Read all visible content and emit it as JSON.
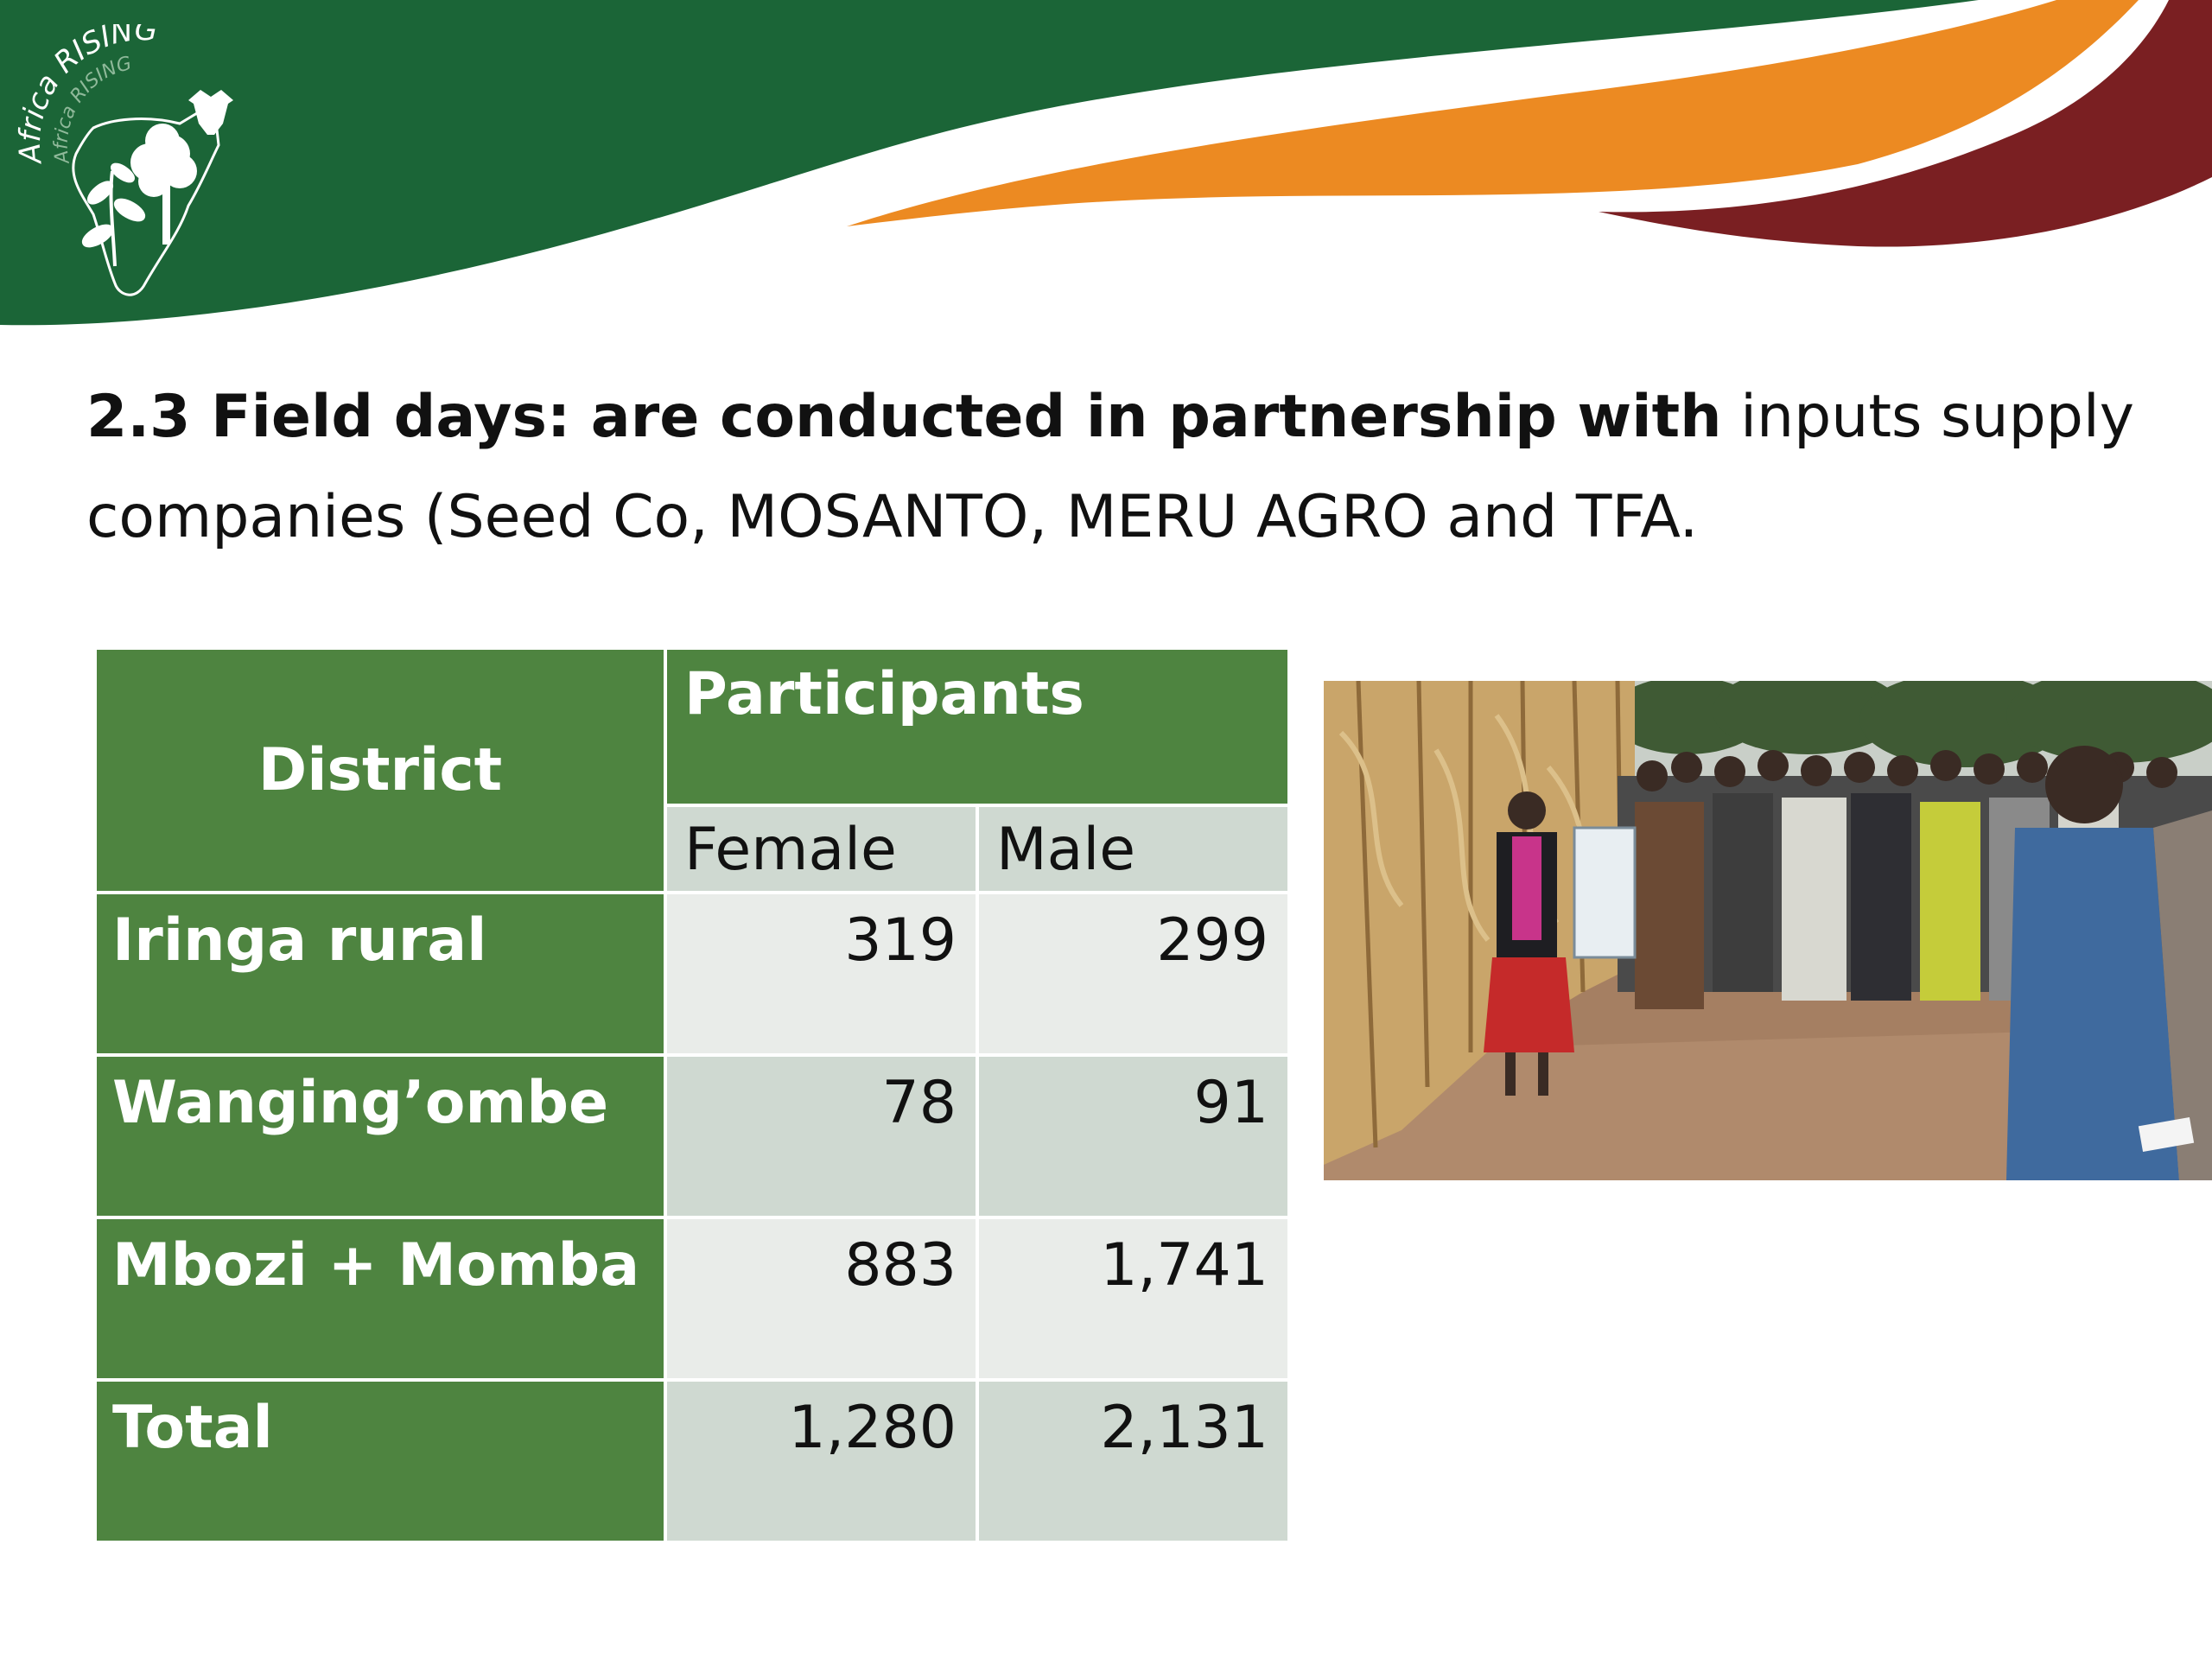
{
  "logo": {
    "text_outer": "Africa RISING",
    "text_inner": "Africa RISING"
  },
  "colors": {
    "brand_green": "#1b6537",
    "brand_orange": "#ec8a22",
    "brand_maroon": "#7a1f22",
    "table_green": "#4e8440",
    "table_light": "#e9ece9",
    "table_medium": "#cfd9d1"
  },
  "heading": {
    "bold_part": "2.3 Field days: are conducted in partnership with",
    "normal_part": " inputs supply companies (Seed Co, MOSANTO, MERU AGRO and TFA."
  },
  "table": {
    "district_header": "District",
    "participants_header": "Participants",
    "female_header": "Female",
    "male_header": "Male",
    "rows": [
      {
        "district": "Iringa rural",
        "female": "319",
        "male": "299"
      },
      {
        "district": "Wanging’ombe",
        "female": "78",
        "male": "91"
      },
      {
        "district": "Mbozi + Momba",
        "female": "883",
        "male": "1,741"
      },
      {
        "district": "Total",
        "female": "1,280",
        "male": "2,131"
      }
    ]
  },
  "photo": {
    "icon": "field-day-photo"
  }
}
